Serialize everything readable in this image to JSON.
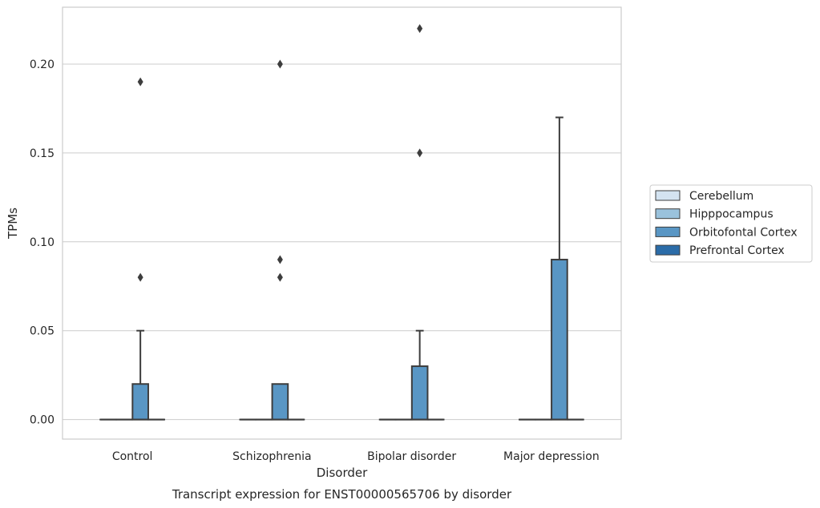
{
  "chart_data": {
    "type": "box",
    "title": "",
    "caption": "Transcript expression for ENST00000565706 by disorder",
    "xlabel": "Disorder",
    "ylabel": "TPMs",
    "ylim": [
      -0.011,
      0.232
    ],
    "yticks": [
      0.0,
      0.05,
      0.1,
      0.15,
      0.2
    ],
    "ytick_labels": [
      "0.00",
      "0.05",
      "0.10",
      "0.15",
      "0.20"
    ],
    "categories": [
      "Control",
      "Schizophrenia",
      "Bipolar disorder",
      "Major depression"
    ],
    "grid": true,
    "legend_position": "right",
    "series": [
      {
        "name": "Cerebellum",
        "color": "#d4e3f1",
        "boxes": [
          {
            "q1": 0,
            "median": 0,
            "q3": 0,
            "whislo": 0,
            "whishi": 0,
            "fliers": []
          },
          {
            "q1": 0,
            "median": 0,
            "q3": 0,
            "whislo": 0,
            "whishi": 0,
            "fliers": []
          },
          {
            "q1": 0,
            "median": 0,
            "q3": 0,
            "whislo": 0,
            "whishi": 0,
            "fliers": []
          },
          {
            "q1": 0,
            "median": 0,
            "q3": 0,
            "whislo": 0,
            "whishi": 0,
            "fliers": []
          }
        ]
      },
      {
        "name": "Hipppocampus",
        "color": "#9ac2dc",
        "boxes": [
          {
            "q1": 0,
            "median": 0,
            "q3": 0,
            "whislo": 0,
            "whishi": 0,
            "fliers": []
          },
          {
            "q1": 0,
            "median": 0,
            "q3": 0,
            "whislo": 0,
            "whishi": 0,
            "fliers": []
          },
          {
            "q1": 0,
            "median": 0,
            "q3": 0,
            "whislo": 0,
            "whishi": 0,
            "fliers": []
          },
          {
            "q1": 0,
            "median": 0,
            "q3": 0,
            "whislo": 0,
            "whishi": 0,
            "fliers": []
          }
        ]
      },
      {
        "name": "Orbitofontal Cortex",
        "color": "#5996c4",
        "boxes": [
          {
            "q1": 0,
            "median": 0,
            "q3": 0.02,
            "whislo": 0,
            "whishi": 0.05,
            "fliers": [
              0.08,
              0.19
            ]
          },
          {
            "q1": 0,
            "median": 0,
            "q3": 0.02,
            "whislo": 0,
            "whishi": 0.02,
            "fliers": [
              0.08,
              0.09,
              0.2
            ]
          },
          {
            "q1": 0,
            "median": 0,
            "q3": 0.03,
            "whislo": 0,
            "whishi": 0.05,
            "fliers": [
              0.15,
              0.22
            ]
          },
          {
            "q1": 0,
            "median": 0,
            "q3": 0.09,
            "whislo": 0,
            "whishi": 0.17,
            "fliers": []
          }
        ]
      },
      {
        "name": "Prefrontal Cortex",
        "color": "#2b6ca8",
        "boxes": [
          {
            "q1": 0,
            "median": 0,
            "q3": 0,
            "whislo": 0,
            "whishi": 0,
            "fliers": []
          },
          {
            "q1": 0,
            "median": 0,
            "q3": 0,
            "whislo": 0,
            "whishi": 0,
            "fliers": []
          },
          {
            "q1": 0,
            "median": 0,
            "q3": 0,
            "whislo": 0,
            "whishi": 0,
            "fliers": []
          },
          {
            "q1": 0,
            "median": 0,
            "q3": 0,
            "whislo": 0,
            "whishi": 0,
            "fliers": []
          }
        ]
      }
    ]
  }
}
